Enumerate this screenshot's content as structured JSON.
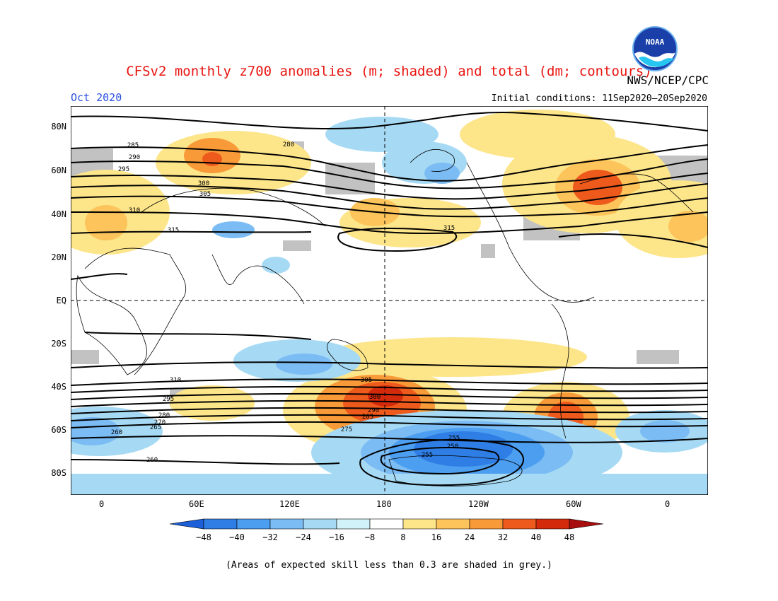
{
  "header": {
    "title": "CFSv2 monthly z700 anomalies (m; shaded) and total (dm; contours)",
    "agency": "NWS/NCEP/CPC",
    "period": "Oct 2020",
    "initial_conditions": "Initial conditions: 11Sep2020–20Sep2020",
    "logo_text": "NOAA"
  },
  "map": {
    "lat_labels": [
      "80N",
      "60N",
      "40N",
      "20N",
      "EQ",
      "20S",
      "40S",
      "60S",
      "80S"
    ],
    "lon_labels": [
      "0",
      "60E",
      "120E",
      "180",
      "120W",
      "60W",
      "0"
    ],
    "contour_labels": [
      "280",
      "285",
      "290",
      "295",
      "300",
      "305",
      "310",
      "315",
      "315",
      "310",
      "305",
      "300",
      "295",
      "290",
      "285",
      "280",
      "275",
      "270",
      "265",
      "260",
      "255",
      "250",
      "255",
      "260"
    ]
  },
  "colorbar": {
    "ticks": [
      "−48",
      "−40",
      "−32",
      "−24",
      "−16",
      "−8",
      "8",
      "16",
      "24",
      "32",
      "40",
      "48"
    ],
    "colors": [
      "#1c5fd8",
      "#2f7ee6",
      "#4c9ef0",
      "#7cbcf4",
      "#a6daf4",
      "#d2f2fa",
      "#ffffff",
      "#fde58a",
      "#fcc45a",
      "#f89a38",
      "#ee5a1c",
      "#d42a0c",
      "#a80e0e"
    ]
  },
  "footer": {
    "skill_note": "(Areas of expected skill less than 0.3 are shaded in grey.)"
  }
}
